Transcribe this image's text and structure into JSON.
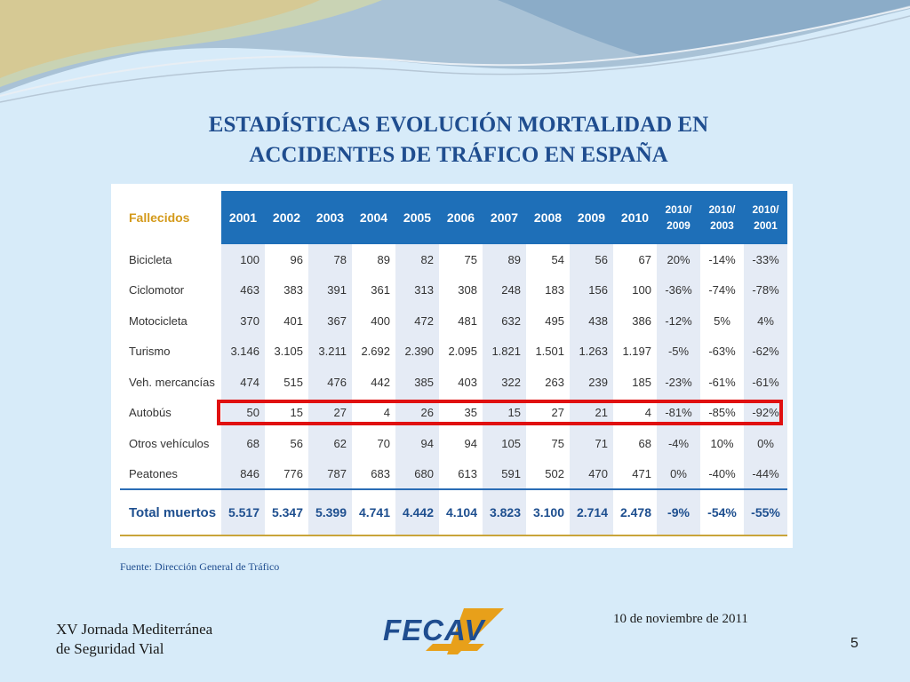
{
  "slide": {
    "title_line1": "ESTADÍSTICAS EVOLUCIÓN MORTALIDAD EN",
    "title_line2": "ACCIDENTES DE TRÁFICO EN ESPAÑA",
    "source": "Fuente: Dirección General de Tráfico",
    "footer_line1": "XV Jornada Mediterránea",
    "footer_line2": "de Seguridad Vial",
    "date": "10 de noviembre de 2011",
    "page_number": "5",
    "logo_text": "FECAV"
  },
  "colors": {
    "background": "#d7ebf9",
    "title": "#1f4d8f",
    "header_fill": "#1e6fb8",
    "header_label": "#d49a1b",
    "highlight": "#e01010",
    "logo_accent": "#e8a01a"
  },
  "table": {
    "header_label": "Fallecidos",
    "columns": [
      "2001",
      "2002",
      "2003",
      "2004",
      "2005",
      "2006",
      "2007",
      "2008",
      "2009",
      "2010",
      "2010/ 2009",
      "2010/ 2003",
      "2010/ 2001"
    ],
    "rows": [
      {
        "label": "Bicicleta",
        "values": [
          "100",
          "96",
          "78",
          "89",
          "82",
          "75",
          "89",
          "54",
          "56",
          "67",
          "20%",
          "-14%",
          "-33%"
        ]
      },
      {
        "label": "Ciclomotor",
        "values": [
          "463",
          "383",
          "391",
          "361",
          "313",
          "308",
          "248",
          "183",
          "156",
          "100",
          "-36%",
          "-74%",
          "-78%"
        ]
      },
      {
        "label": "Motocicleta",
        "values": [
          "370",
          "401",
          "367",
          "400",
          "472",
          "481",
          "632",
          "495",
          "438",
          "386",
          "-12%",
          "5%",
          "4%"
        ]
      },
      {
        "label": "Turismo",
        "values": [
          "3.146",
          "3.105",
          "3.211",
          "2.692",
          "2.390",
          "2.095",
          "1.821",
          "1.501",
          "1.263",
          "1.197",
          "-5%",
          "-63%",
          "-62%"
        ]
      },
      {
        "label": "Veh. mercancías",
        "values": [
          "474",
          "515",
          "476",
          "442",
          "385",
          "403",
          "322",
          "263",
          "239",
          "185",
          "-23%",
          "-61%",
          "-61%"
        ]
      },
      {
        "label": "Autobús",
        "values": [
          "50",
          "15",
          "27",
          "4",
          "26",
          "35",
          "15",
          "27",
          "21",
          "4",
          "-81%",
          "-85%",
          "-92%"
        ]
      },
      {
        "label": "Otros vehículos",
        "values": [
          "68",
          "56",
          "62",
          "70",
          "94",
          "94",
          "105",
          "75",
          "71",
          "68",
          "-4%",
          "10%",
          "0%"
        ]
      },
      {
        "label": "Peatones",
        "values": [
          "846",
          "776",
          "787",
          "683",
          "680",
          "613",
          "591",
          "502",
          "470",
          "471",
          "0%",
          "-40%",
          "-44%"
        ]
      }
    ],
    "total": {
      "label": "Total muertos",
      "values": [
        "5.517",
        "5.347",
        "5.399",
        "4.741",
        "4.442",
        "4.104",
        "3.823",
        "3.100",
        "2.714",
        "2.478",
        "-9%",
        "-54%",
        "-55%"
      ]
    },
    "highlighted_row": "Autobús"
  }
}
